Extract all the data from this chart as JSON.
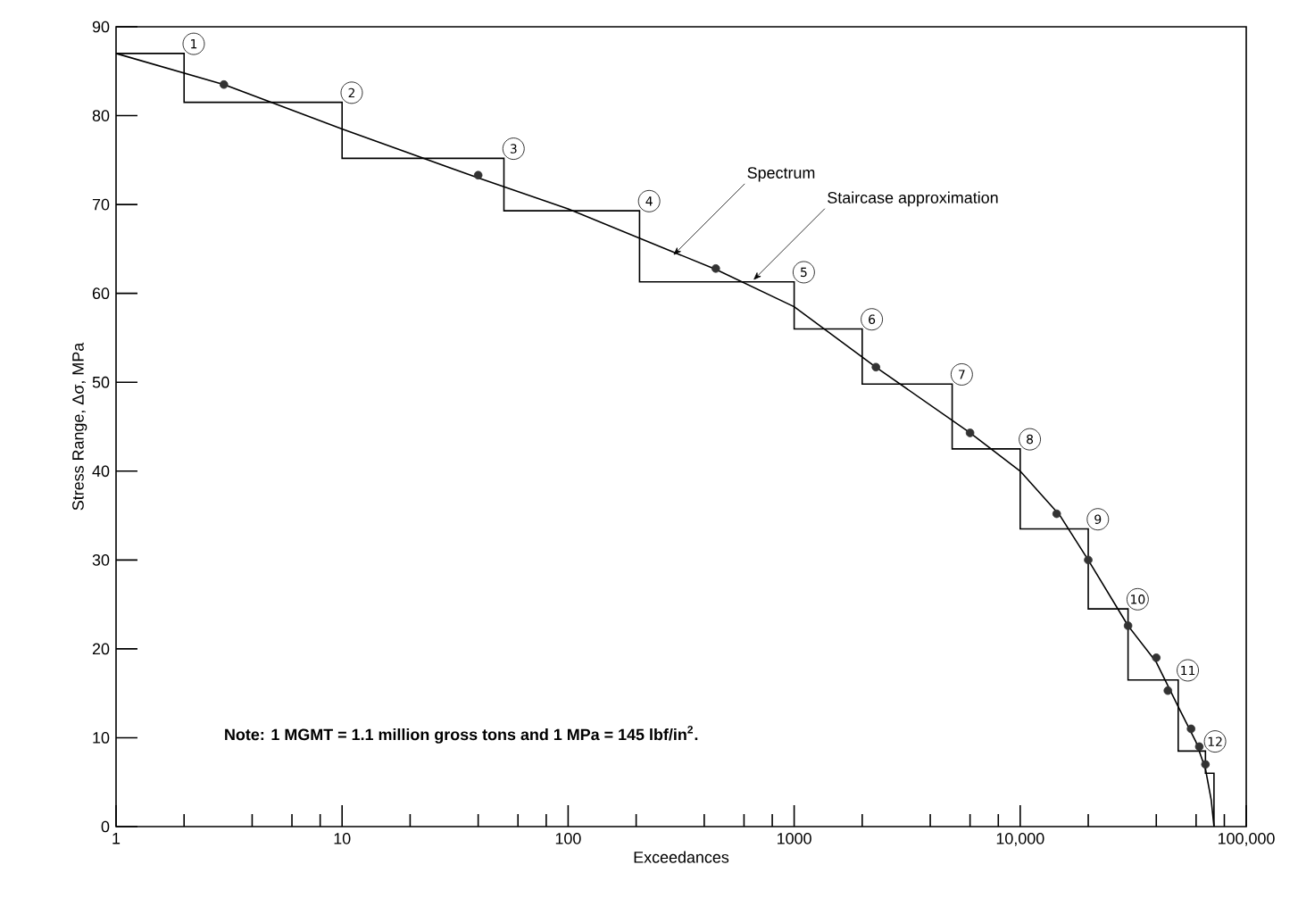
{
  "chart_data": {
    "type": "line",
    "xlabel": "Exceedances",
    "ylabel": "Stress Range, Δσ, MPa",
    "log": "x",
    "grid": false,
    "xlim": [
      1,
      100000
    ],
    "ylim": [
      0,
      90
    ],
    "xticks": [
      {
        "value": 1,
        "label": "1"
      },
      {
        "value": 2,
        "label": null
      },
      {
        "value": 4,
        "label": null
      },
      {
        "value": 6,
        "label": null
      },
      {
        "value": 8,
        "label": null
      },
      {
        "value": 10,
        "label": "10"
      },
      {
        "value": 20,
        "label": null
      },
      {
        "value": 40,
        "label": null
      },
      {
        "value": 60,
        "label": null
      },
      {
        "value": 80,
        "label": null
      },
      {
        "value": 100,
        "label": "100"
      },
      {
        "value": 200,
        "label": null
      },
      {
        "value": 400,
        "label": null
      },
      {
        "value": 600,
        "label": null
      },
      {
        "value": 800,
        "label": null
      },
      {
        "value": 1000,
        "label": "1000"
      },
      {
        "value": 2000,
        "label": null
      },
      {
        "value": 4000,
        "label": null
      },
      {
        "value": 6000,
        "label": null
      },
      {
        "value": 8000,
        "label": null
      },
      {
        "value": 10000,
        "label": "10,000"
      },
      {
        "value": 20000,
        "label": null
      },
      {
        "value": 40000,
        "label": null
      },
      {
        "value": 60000,
        "label": null
      },
      {
        "value": 80000,
        "label": null
      },
      {
        "value": 100000,
        "label": "100,000"
      }
    ],
    "yticks": [
      0,
      10,
      20,
      30,
      40,
      50,
      60,
      70,
      80,
      90
    ],
    "series": [
      {
        "type": "step",
        "color": "#000000",
        "x": [
          1,
          2,
          10,
          52,
          207,
          1000,
          2000,
          5000,
          10000,
          20000,
          30000,
          50000,
          66000,
          72000
        ],
        "values": [
          87,
          81.5,
          75.2,
          69.3,
          61.3,
          56,
          49.8,
          42.5,
          33.5,
          24.5,
          16.5,
          8.5,
          6,
          0
        ]
      },
      {
        "color": "#000000",
        "x": [
          1,
          3,
          10,
          40,
          100,
          450,
          1000,
          2300,
          6000,
          10000,
          15000,
          20000,
          30000,
          40000,
          50000,
          60000,
          66000,
          70000,
          72000
        ],
        "values": [
          87,
          83.5,
          78.5,
          73,
          69.5,
          62.7,
          58.5,
          51.7,
          44.3,
          40,
          35,
          30,
          22.6,
          18.5,
          13.5,
          9.5,
          6.5,
          3,
          0
        ]
      },
      {
        "type": "scatter",
        "marker": "circle",
        "color": "#333333",
        "x": [
          3,
          40,
          450,
          2300,
          6000,
          14500,
          20000,
          30000,
          40000,
          45000,
          57000,
          62000,
          66000
        ],
        "values": [
          83.5,
          73.3,
          62.8,
          51.7,
          44.3,
          35.2,
          30,
          22.6,
          19,
          15.3,
          11,
          9,
          7
        ]
      }
    ],
    "annotations": [
      {
        "text": "1",
        "x": 2,
        "y": 87
      },
      {
        "text": "2",
        "x": 10,
        "y": 81.5
      },
      {
        "text": "3",
        "x": 52,
        "y": 75.2
      },
      {
        "text": "4",
        "x": 207,
        "y": 69.3
      },
      {
        "text": "5",
        "x": 1000,
        "y": 61.3
      },
      {
        "text": "6",
        "x": 2000,
        "y": 56
      },
      {
        "text": "7",
        "x": 5000,
        "y": 49.8
      },
      {
        "text": "8",
        "x": 10000,
        "y": 42.5
      },
      {
        "text": "9",
        "x": 20000,
        "y": 33.5
      },
      {
        "text": "10",
        "x": 30000,
        "y": 24.5
      },
      {
        "text": "11",
        "x": 50000,
        "y": 16.5
      },
      {
        "text": "12",
        "x": 66000,
        "y": 8.5
      },
      {
        "text": "Spectrum",
        "x": 292,
        "y": 64.3
      },
      {
        "text": "Staircase approximation",
        "x": 660,
        "y": 61.5
      },
      "Note:  1 MGMT = 1.1 million gross tons and 1 MPa = 145 lbf/in$^{2}$."
    ]
  }
}
